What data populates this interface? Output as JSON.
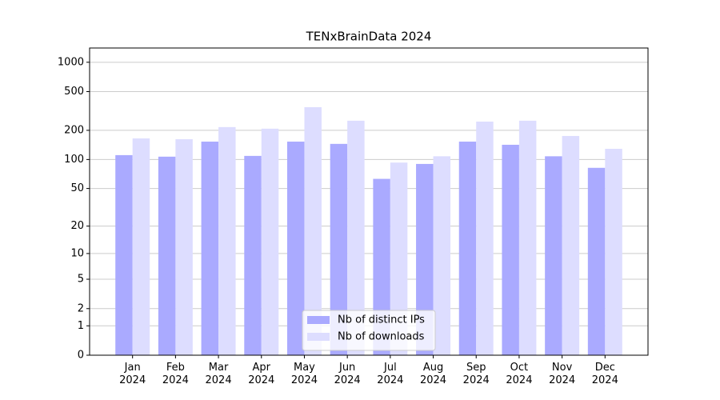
{
  "chart_data": {
    "type": "bar",
    "title": "TENxBrainData 2024",
    "categories": [
      "Jan\n2024",
      "Feb\n2024",
      "Mar\n2024",
      "Apr\n2024",
      "May\n2024",
      "Jun\n2024",
      "Jul\n2024",
      "Aug\n2024",
      "Sep\n2024",
      "Oct\n2024",
      "Nov\n2024",
      "Dec\n2024"
    ],
    "series": [
      {
        "name": "Nb of distinct IPs",
        "color": "#aaaaff",
        "values": [
          111,
          107,
          153,
          109,
          153,
          145,
          63,
          90,
          153,
          142,
          108,
          82
        ]
      },
      {
        "name": "Nb of downloads",
        "color": "#ddddff",
        "values": [
          165,
          162,
          216,
          208,
          346,
          251,
          93,
          108,
          246,
          251,
          175,
          129
        ]
      }
    ],
    "yscale": "symlog",
    "ylim": [
      0,
      1400
    ],
    "yticks": [
      0,
      1,
      2,
      5,
      10,
      20,
      50,
      100,
      200,
      500,
      1000
    ],
    "grid": true,
    "legend": "lower center"
  }
}
